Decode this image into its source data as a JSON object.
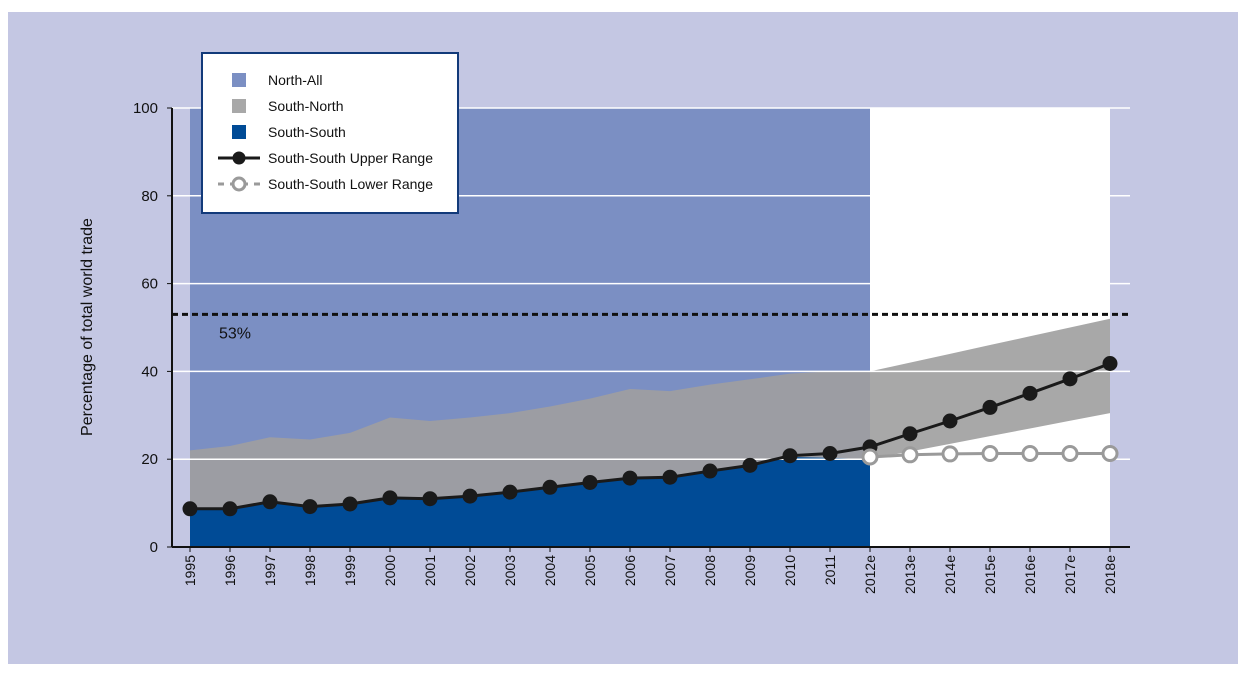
{
  "chart_data": {
    "type": "area",
    "y_label": "Percentage of total world trade",
    "categories": [
      "1995",
      "1996",
      "1997",
      "1998",
      "1999",
      "2000",
      "2001",
      "2002",
      "2003",
      "2004",
      "2005",
      "2006",
      "2007",
      "2008",
      "2009",
      "2010",
      "2011",
      "2012e",
      "2013e",
      "2014e",
      "2015e",
      "2016e",
      "2017e",
      "2018e"
    ],
    "ylim": [
      0,
      100
    ],
    "yticks": [
      0,
      20,
      40,
      60,
      80,
      100
    ],
    "grid": true,
    "legend": "top-left",
    "series": [
      {
        "name": "North-All",
        "type": "area",
        "color": "#7b8fc3",
        "values": [
          100,
          100,
          100,
          100,
          100,
          100,
          100,
          100,
          100,
          100,
          100,
          100,
          100,
          100,
          100,
          100,
          100,
          100,
          null,
          null,
          null,
          null,
          null,
          null
        ]
      },
      {
        "name": "South-North",
        "type": "area",
        "color": "#9c9da3",
        "band_color": "#a8a8a8",
        "values": [
          22,
          23,
          25,
          24.5,
          26,
          29.5,
          28.7,
          29.5,
          30.5,
          32,
          33.8,
          36,
          35.5,
          37,
          38.2,
          39.5,
          40,
          40,
          42,
          44,
          46,
          48,
          50,
          52
        ],
        "lower": [
          null,
          null,
          null,
          null,
          null,
          null,
          null,
          null,
          null,
          null,
          null,
          null,
          null,
          null,
          null,
          null,
          null,
          20,
          21.75,
          23.5,
          25.25,
          27,
          28.75,
          30.5
        ]
      },
      {
        "name": "South-South",
        "type": "area",
        "color": "#004b96",
        "values": [
          8.7,
          8.7,
          10.3,
          9.2,
          9.8,
          11.2,
          11,
          11.6,
          12.5,
          13.6,
          14.7,
          15.7,
          15.9,
          17.3,
          18.6,
          20.5,
          20.3,
          20,
          null,
          null,
          null,
          null,
          null,
          null
        ]
      },
      {
        "name": "South-South Upper Range",
        "type": "line",
        "color": "#1a1a1a",
        "marker": "filled",
        "values": [
          8.7,
          8.7,
          10.3,
          9.2,
          9.8,
          11.2,
          11,
          11.6,
          12.5,
          13.6,
          14.7,
          15.7,
          15.9,
          17.3,
          18.6,
          20.8,
          21.3,
          22.8,
          25.8,
          28.7,
          31.8,
          35,
          38.3,
          41.8
        ]
      },
      {
        "name": "South-South Lower Range",
        "type": "line",
        "color": "#9a9a9a",
        "marker": "open",
        "dashed": true,
        "values": [
          null,
          null,
          null,
          null,
          null,
          null,
          null,
          null,
          null,
          null,
          null,
          null,
          null,
          null,
          null,
          null,
          null,
          20.5,
          21,
          21.2,
          21.3,
          21.3,
          21.3,
          21.3
        ]
      }
    ],
    "reference_line": {
      "value": 53,
      "label": "53%"
    }
  }
}
